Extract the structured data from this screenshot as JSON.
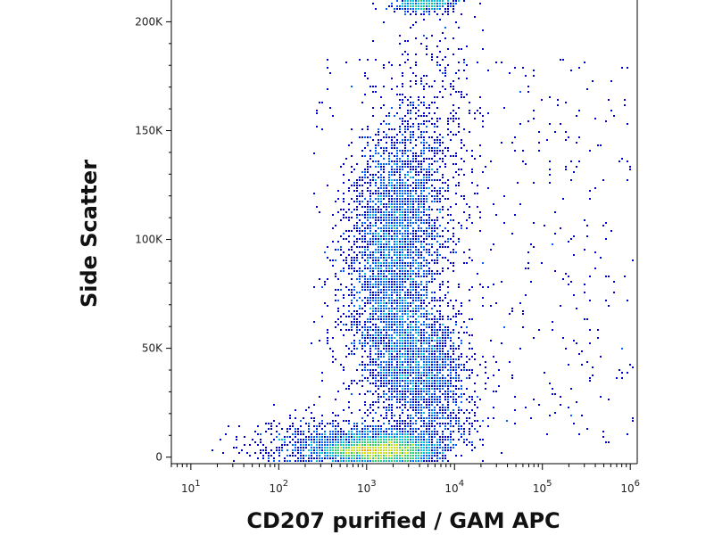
{
  "chart_data": {
    "type": "scatter",
    "subtype": "flow-cytometry-density-dot-plot",
    "title": "",
    "xlabel": "CD207 purified / GAM APC",
    "ylabel": "Side Scatter",
    "x_scale": "log",
    "y_scale": "linear",
    "xlim": [
      6,
      1200000
    ],
    "ylim": [
      -3000,
      210000
    ],
    "x_ticks": [
      {
        "value": 10,
        "base": "10",
        "exp": "1"
      },
      {
        "value": 100,
        "base": "10",
        "exp": "2"
      },
      {
        "value": 1000,
        "base": "10",
        "exp": "3"
      },
      {
        "value": 10000,
        "base": "10",
        "exp": "4"
      },
      {
        "value": 100000,
        "base": "10",
        "exp": "5"
      },
      {
        "value": 1000000,
        "base": "10",
        "exp": "6"
      }
    ],
    "y_ticks": [
      {
        "value": 0,
        "label": "0"
      },
      {
        "value": 50000,
        "label": "50K"
      },
      {
        "value": 100000,
        "label": "100K"
      },
      {
        "value": 150000,
        "label": "150K"
      },
      {
        "value": 200000,
        "label": "200K"
      }
    ],
    "grid": false,
    "legend": "none",
    "colormap": [
      "#0000cc",
      "#0060ff",
      "#00c0e0",
      "#30d070",
      "#c8e020",
      "#f0a000",
      "#e02000"
    ],
    "populations": [
      {
        "x_center": 1500,
        "y_center": 10000,
        "y_spread": 8000,
        "density": "very high"
      },
      {
        "x_center": 2500,
        "y_center": 100000,
        "y_spread": 25000,
        "density": "high"
      },
      {
        "x_center": 4000,
        "y_center": 45000,
        "y_spread": 20000,
        "density": "high"
      },
      {
        "x_center": 3000,
        "y_center": 205000,
        "y_spread": 8000,
        "density": "medium"
      }
    ]
  }
}
